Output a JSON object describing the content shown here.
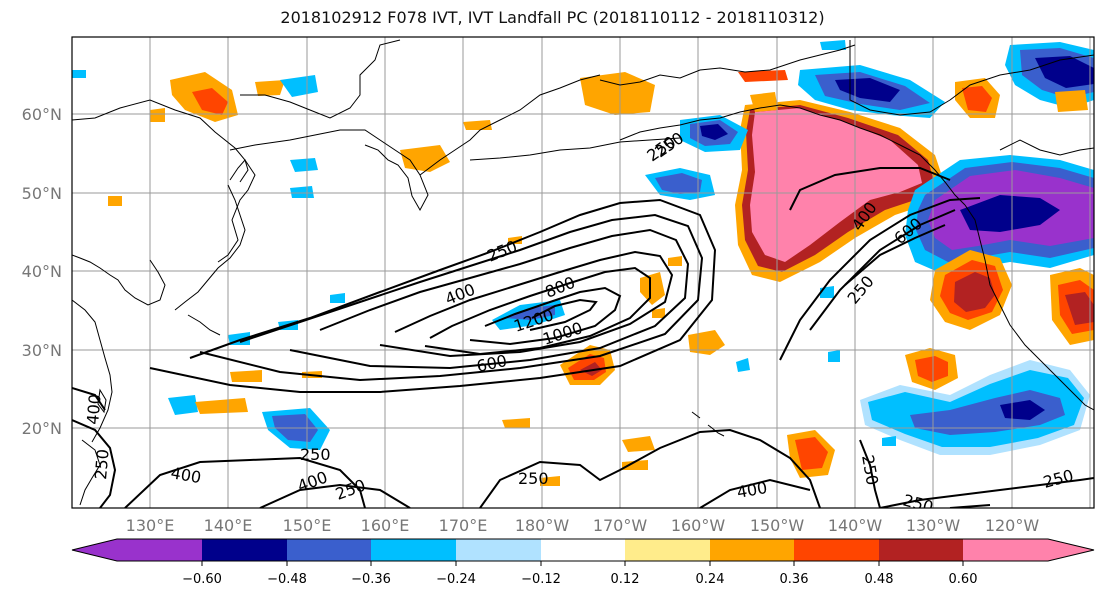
{
  "title": "2018102912 F078 IVT, IVT Landfall PC (2018110112 - 2018110312)",
  "lat_labels": [
    "60°N",
    "50°N",
    "40°N",
    "30°N",
    "20°N"
  ],
  "lon_labels": [
    "130°E",
    "140°E",
    "150°E",
    "160°E",
    "170°E",
    "180°W",
    "170°W",
    "160°W",
    "150°W",
    "140°W",
    "130°W",
    "120°W"
  ],
  "contour_labels": [
    "250",
    "400",
    "800",
    "1200",
    "1000",
    "600",
    "250",
    "400",
    "600",
    "250",
    "250",
    "400",
    "250",
    "400",
    "250",
    "250",
    "400",
    "250",
    "250",
    "400",
    "250",
    "250"
  ],
  "colorbar": {
    "ticks": [
      "−0.60",
      "−0.48",
      "−0.36",
      "−0.24",
      "−0.12",
      "0.12",
      "0.24",
      "0.36",
      "0.48",
      "0.60"
    ],
    "colors": [
      "#9932cc",
      "#00008b",
      "#3a5fcd",
      "#00bfff",
      "#b0e2ff",
      "#ffffff",
      "#ffec8b",
      "#ffa500",
      "#ff4500",
      "#b22222",
      "#ff82ab"
    ]
  },
  "shading_colors": {
    "pink": "#ff82ab",
    "darkred": "#b22222",
    "orangered": "#ff4500",
    "orange": "#ffa500",
    "lightyellow": "#ffec8b",
    "purple": "#9932cc",
    "navy": "#00008b",
    "royalblue": "#3a5fcd",
    "deepskyblue": "#00bfff",
    "lightblue": "#b0e2ff"
  }
}
